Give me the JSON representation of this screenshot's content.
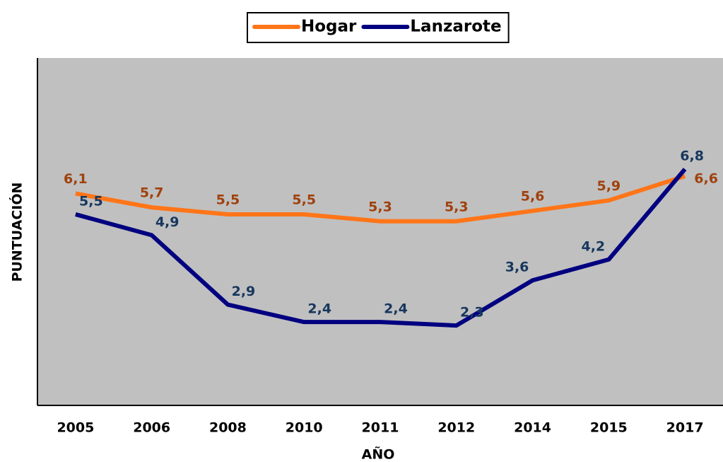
{
  "chart_data": {
    "type": "line",
    "x_label": "AÑO",
    "y_label": "PUNTUACIÓN",
    "categories": [
      "2005",
      "2006",
      "2008",
      "2010",
      "2011",
      "2012",
      "2014",
      "2015",
      "2017"
    ],
    "series": [
      {
        "name": "Hogar",
        "color": "#ff7518",
        "label_color": "#a0410d",
        "values": [
          6.1,
          5.7,
          5.5,
          5.5,
          5.3,
          5.3,
          5.6,
          5.9,
          6.6
        ],
        "value_labels": [
          "6,1",
          "5,7",
          "5,5",
          "5,5",
          "5,3",
          "5,3",
          "5,6",
          "5,9",
          "6,6"
        ]
      },
      {
        "name": "Lanzarote",
        "color": "#000080",
        "label_color": "#17375e",
        "values": [
          5.5,
          4.9,
          2.9,
          2.4,
          2.4,
          2.3,
          3.6,
          4.2,
          6.8
        ],
        "value_labels": [
          "5,5",
          "4,9",
          "2,9",
          "2,4",
          "2,4",
          "2,3",
          "3,6",
          "4,2",
          "6,8"
        ]
      }
    ],
    "ylim": [
      0,
      10
    ],
    "legend": "top",
    "plot_background": "#c0c0c0"
  }
}
